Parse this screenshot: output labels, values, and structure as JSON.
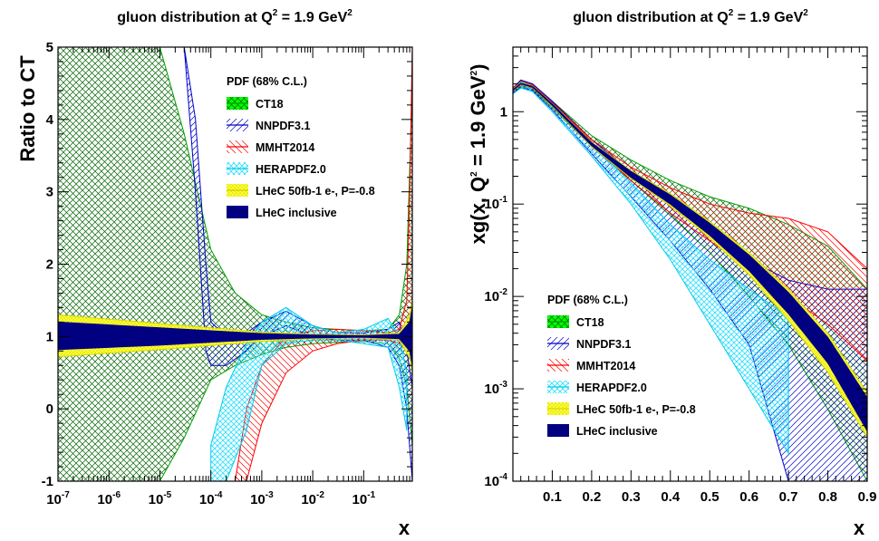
{
  "chart_data": [
    {
      "type": "area",
      "panel": "left",
      "title": "gluon distribution at Q",
      "title_sup_q": "2",
      "title_rest": " = 1.9 GeV",
      "title_sup_gev": "2",
      "ylabel": "Ratio to CT",
      "xlabel": "x",
      "xscale": "log",
      "xlim": [
        1e-07,
        0.9
      ],
      "ylim": [
        -1,
        5
      ],
      "x_ticks": [
        {
          "base": "10",
          "exp": "-7",
          "v": 1e-07
        },
        {
          "base": "10",
          "exp": "-6",
          "v": 1e-06
        },
        {
          "base": "10",
          "exp": "-5",
          "v": 1e-05
        },
        {
          "base": "10",
          "exp": "-4",
          "v": 0.0001
        },
        {
          "base": "10",
          "exp": "-3",
          "v": 0.001
        },
        {
          "base": "10",
          "exp": "-2",
          "v": 0.01
        },
        {
          "base": "10",
          "exp": "-1",
          "v": 0.1
        }
      ],
      "y_ticks": [
        "-1",
        "0",
        "1",
        "2",
        "3",
        "4",
        "5"
      ],
      "legend": {
        "title": "PDF (68% C.L.)",
        "placement": "top-right",
        "entries": [
          "CT18",
          "NNPDF3.1",
          "MMHT2014",
          "HERAPDF2.0",
          "LHeC 50fb-1 e-, P=-0.8",
          "LHeC inclusive"
        ]
      },
      "series": [
        {
          "name": "CT18",
          "x": [
            1e-07,
            1e-06,
            1e-05,
            3e-05,
            0.0001,
            0.0003,
            0.001,
            0.003,
            0.01,
            0.03,
            0.1,
            0.3,
            0.5,
            0.7,
            0.9
          ],
          "upper": [
            5.0,
            5.0,
            5.0,
            3.8,
            2.2,
            1.6,
            1.3,
            1.2,
            1.12,
            1.1,
            1.08,
            1.1,
            1.3,
            2.0,
            4.5
          ],
          "lower": [
            -1.0,
            -1.0,
            -1.0,
            -0.4,
            0.4,
            0.6,
            0.75,
            0.85,
            0.9,
            0.92,
            0.93,
            0.9,
            0.7,
            0.3,
            -0.5
          ]
        },
        {
          "name": "NNPDF3.1",
          "x": [
            3e-05,
            5e-05,
            8e-05,
            0.0001,
            0.0002,
            0.0005,
            0.001,
            0.003,
            0.01,
            0.03,
            0.1,
            0.3,
            0.5,
            0.7,
            0.9
          ],
          "upper": [
            5.0,
            4.0,
            2.0,
            1.2,
            1.0,
            1.05,
            1.2,
            1.35,
            1.15,
            1.05,
            1.05,
            1.1,
            1.2,
            0.8,
            0.3
          ],
          "lower": [
            5.0,
            3.0,
            0.8,
            0.6,
            0.6,
            0.8,
            1.0,
            1.15,
            1.0,
            0.95,
            0.95,
            0.85,
            0.6,
            0.0,
            -1.0
          ]
        },
        {
          "name": "MMHT2014",
          "x": [
            0.0003,
            0.0005,
            0.001,
            0.003,
            0.01,
            0.03,
            0.1,
            0.3,
            0.5,
            0.7,
            0.8,
            0.9
          ],
          "upper": [
            -1.0,
            0.0,
            0.6,
            1.0,
            1.08,
            1.1,
            1.08,
            1.05,
            1.1,
            1.5,
            3.0,
            5.0
          ],
          "lower": [
            -1.0,
            -1.0,
            -0.2,
            0.5,
            0.8,
            0.9,
            0.95,
            0.95,
            0.9,
            0.8,
            0.9,
            1.0
          ]
        },
        {
          "name": "HERAPDF2.0",
          "x": [
            0.0001,
            0.0002,
            0.0005,
            0.001,
            0.003,
            0.01,
            0.03,
            0.1,
            0.3,
            0.5,
            0.7
          ],
          "upper": [
            -0.5,
            0.3,
            0.9,
            1.2,
            1.4,
            1.15,
            1.05,
            1.1,
            1.25,
            1.0,
            0.5
          ],
          "lower": [
            -1.0,
            -1.0,
            -0.3,
            0.6,
            0.9,
            0.95,
            0.95,
            0.9,
            0.85,
            0.3,
            -0.3
          ]
        },
        {
          "name": "LHeC 50fb-1 e-, P=-0.8",
          "x": [
            1e-07,
            1e-05,
            0.001,
            0.01,
            0.1,
            0.5,
            0.8,
            0.9
          ],
          "upper": [
            1.3,
            1.18,
            1.06,
            1.03,
            1.02,
            1.05,
            1.3,
            1.5
          ],
          "lower": [
            0.72,
            0.82,
            0.93,
            0.97,
            0.98,
            0.95,
            0.7,
            0.5
          ]
        },
        {
          "name": "LHeC inclusive",
          "x": [
            1e-07,
            1e-05,
            0.001,
            0.01,
            0.1,
            0.5,
            0.8,
            0.9
          ],
          "upper": [
            1.2,
            1.12,
            1.04,
            1.02,
            1.01,
            1.03,
            1.2,
            1.4
          ],
          "lower": [
            0.82,
            0.88,
            0.96,
            0.98,
            0.99,
            0.97,
            0.8,
            0.6
          ]
        }
      ]
    },
    {
      "type": "area",
      "panel": "right",
      "title": "gluon distribution at Q",
      "title_sup_q": "2",
      "title_rest": " = 1.9 GeV",
      "title_sup_gev": "2",
      "ylabel": "xg(x, Q",
      "ylabel_sup_q": "2",
      "ylabel_rest": " = 1.9 GeV",
      "ylabel_sup_gev": "2",
      "ylabel_end": ")",
      "xlabel": "x",
      "xscale": "linear",
      "yscale": "log",
      "xlim": [
        0.0,
        0.9
      ],
      "ylim": [
        0.0001,
        5
      ],
      "x_ticks": [
        "0.1",
        "0.2",
        "0.3",
        "0.4",
        "0.5",
        "0.6",
        "0.7",
        "0.8",
        "0.9"
      ],
      "y_ticks": [
        {
          "label": "1",
          "v": 1
        },
        {
          "base": "10",
          "exp": "-1",
          "v": 0.1
        },
        {
          "base": "10",
          "exp": "-2",
          "v": 0.01
        },
        {
          "base": "10",
          "exp": "-3",
          "v": 0.001
        },
        {
          "base": "10",
          "exp": "-4",
          "v": 0.0001
        }
      ],
      "legend": {
        "title": "PDF (68% C.L.)",
        "placement": "bottom-left",
        "entries": [
          "CT18",
          "NNPDF3.1",
          "MMHT2014",
          "HERAPDF2.0",
          "LHeC 50fb-1 e-, P=-0.8",
          "LHeC inclusive"
        ]
      },
      "series": [
        {
          "name": "CT18",
          "x": [
            0.0,
            0.02,
            0.05,
            0.1,
            0.2,
            0.3,
            0.4,
            0.5,
            0.6,
            0.7,
            0.8,
            0.9
          ],
          "upper": [
            1.8,
            2.2,
            2.0,
            1.3,
            0.55,
            0.3,
            0.18,
            0.12,
            0.09,
            0.06,
            0.035,
            0.012
          ],
          "lower": [
            1.6,
            1.9,
            1.75,
            1.1,
            0.42,
            0.18,
            0.075,
            0.03,
            0.01,
            0.003,
            0.0006,
            0.0001
          ]
        },
        {
          "name": "NNPDF3.1",
          "x": [
            0.0,
            0.02,
            0.05,
            0.1,
            0.2,
            0.3,
            0.4,
            0.5,
            0.6,
            0.7,
            0.8,
            0.9
          ],
          "upper": [
            1.8,
            2.2,
            2.0,
            1.3,
            0.5,
            0.22,
            0.1,
            0.05,
            0.025,
            0.015,
            0.012,
            0.012
          ],
          "lower": [
            1.6,
            1.85,
            1.7,
            1.05,
            0.35,
            0.12,
            0.04,
            0.012,
            0.003,
            0.0001,
            0.0001,
            0.0001
          ]
        },
        {
          "name": "MMHT2014",
          "x": [
            0.0,
            0.02,
            0.05,
            0.1,
            0.2,
            0.3,
            0.4,
            0.5,
            0.6,
            0.7,
            0.8,
            0.9
          ],
          "upper": [
            1.8,
            2.15,
            1.95,
            1.25,
            0.5,
            0.25,
            0.15,
            0.1,
            0.08,
            0.07,
            0.05,
            0.02
          ],
          "lower": [
            1.65,
            1.95,
            1.8,
            1.15,
            0.42,
            0.18,
            0.08,
            0.04,
            0.02,
            0.01,
            0.005,
            0.002
          ]
        },
        {
          "name": "HERAPDF2.0",
          "x": [
            0.0,
            0.02,
            0.05,
            0.1,
            0.2,
            0.3,
            0.4,
            0.5,
            0.6,
            0.7
          ],
          "upper": [
            1.75,
            2.1,
            1.9,
            1.2,
            0.45,
            0.17,
            0.06,
            0.025,
            0.012,
            0.006
          ],
          "lower": [
            1.55,
            1.8,
            1.65,
            1.0,
            0.33,
            0.1,
            0.025,
            0.005,
            0.001,
            0.0002
          ]
        },
        {
          "name": "LHeC 50fb-1 e-, P=-0.8",
          "x": [
            0.0,
            0.02,
            0.05,
            0.1,
            0.2,
            0.3,
            0.4,
            0.5,
            0.6,
            0.7,
            0.8,
            0.9
          ],
          "upper": [
            1.75,
            2.05,
            1.9,
            1.22,
            0.47,
            0.23,
            0.13,
            0.065,
            0.03,
            0.012,
            0.004,
            0.0009
          ],
          "lower": [
            1.68,
            1.98,
            1.82,
            1.15,
            0.42,
            0.19,
            0.095,
            0.043,
            0.017,
            0.0055,
            0.0015,
            0.0003
          ]
        },
        {
          "name": "LHeC inclusive",
          "x": [
            0.0,
            0.02,
            0.05,
            0.1,
            0.2,
            0.3,
            0.4,
            0.5,
            0.6,
            0.7,
            0.8,
            0.9
          ],
          "upper": [
            1.73,
            2.03,
            1.88,
            1.21,
            0.46,
            0.225,
            0.125,
            0.062,
            0.028,
            0.011,
            0.0036,
            0.0008
          ],
          "lower": [
            1.7,
            2.0,
            1.84,
            1.17,
            0.43,
            0.195,
            0.1,
            0.046,
            0.019,
            0.0065,
            0.0019,
            0.00035
          ]
        }
      ]
    }
  ],
  "styles": {
    "CT18": {
      "fill": "#00ff00",
      "stroke": "#00a000",
      "pattern": "crosshatch-dark",
      "pattern_color": "#006400"
    },
    "NNPDF3.1": {
      "fill": "none",
      "stroke": "#0000cc",
      "pattern": "diag-left",
      "pattern_color": "#0000cc"
    },
    "MMHT2014": {
      "fill": "none",
      "stroke": "#ff0000",
      "pattern": "diag-right",
      "pattern_color": "#ff0000"
    },
    "HERAPDF2.0": {
      "fill": "none",
      "stroke": "#00ccee",
      "pattern": "crosshatch",
      "pattern_color": "#33e0ff"
    },
    "LHeC 50fb-1 e-, P=-0.8": {
      "fill": "#ffff33",
      "stroke": "#d4d400",
      "pattern": "dots",
      "pattern_color": "#b8b800"
    },
    "LHeC inclusive": {
      "fill": "#000080",
      "stroke": "#000080",
      "pattern": "solid",
      "pattern_color": "#000080"
    }
  }
}
